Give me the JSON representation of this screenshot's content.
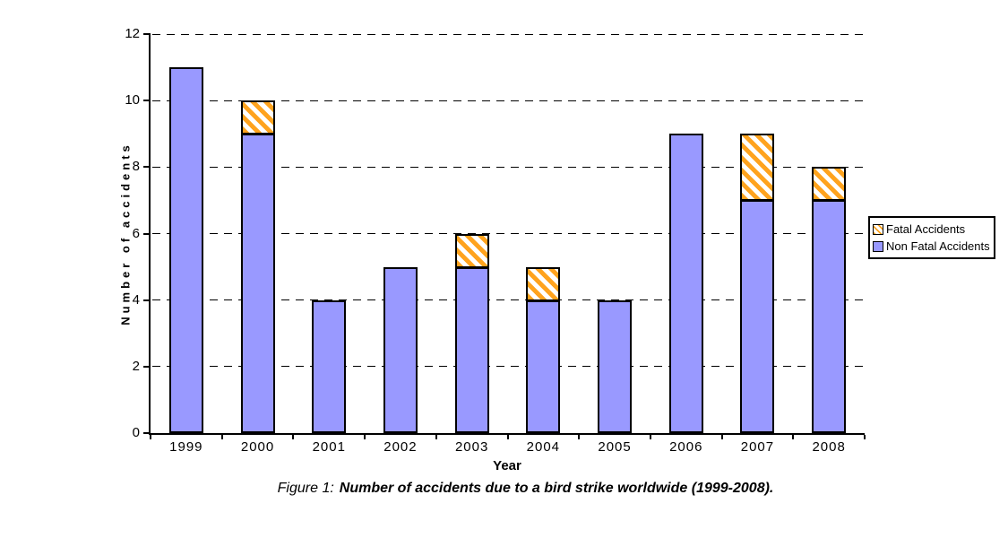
{
  "figure": {
    "caption_prefix": "Figure 1:",
    "caption_text": "Number of accidents due to a bird strike worldwide (1999-2008)."
  },
  "chart_data": {
    "type": "bar",
    "stacked": true,
    "title": "",
    "xlabel": "Year",
    "ylabel": "Number of accidents",
    "categories": [
      "1999",
      "2000",
      "2001",
      "2002",
      "2003",
      "2004",
      "2005",
      "2006",
      "2007",
      "2008"
    ],
    "series": [
      {
        "name": "Fatal Accidents",
        "style": "orange-diagonal-hatch-on-white",
        "values": [
          0,
          1,
          0,
          0,
          1,
          1,
          0,
          0,
          2,
          1
        ]
      },
      {
        "name": "Non Fatal Accidents",
        "style": "solid-blue",
        "values": [
          11,
          9,
          4,
          5,
          5,
          4,
          4,
          9,
          7,
          7
        ]
      }
    ],
    "ylim": [
      0,
      12
    ],
    "yticks": [
      0,
      2,
      4,
      6,
      8,
      10,
      12
    ],
    "grid": "horizontal-dashed",
    "legend_position": "right",
    "colors": {
      "non_fatal_fill": "#9999FF",
      "fatal_hatch": "#FFA31E",
      "fatal_bg": "#FFFFFF",
      "bar_border": "#000000",
      "axis": "#000000",
      "background": "#FFFFFF"
    }
  }
}
